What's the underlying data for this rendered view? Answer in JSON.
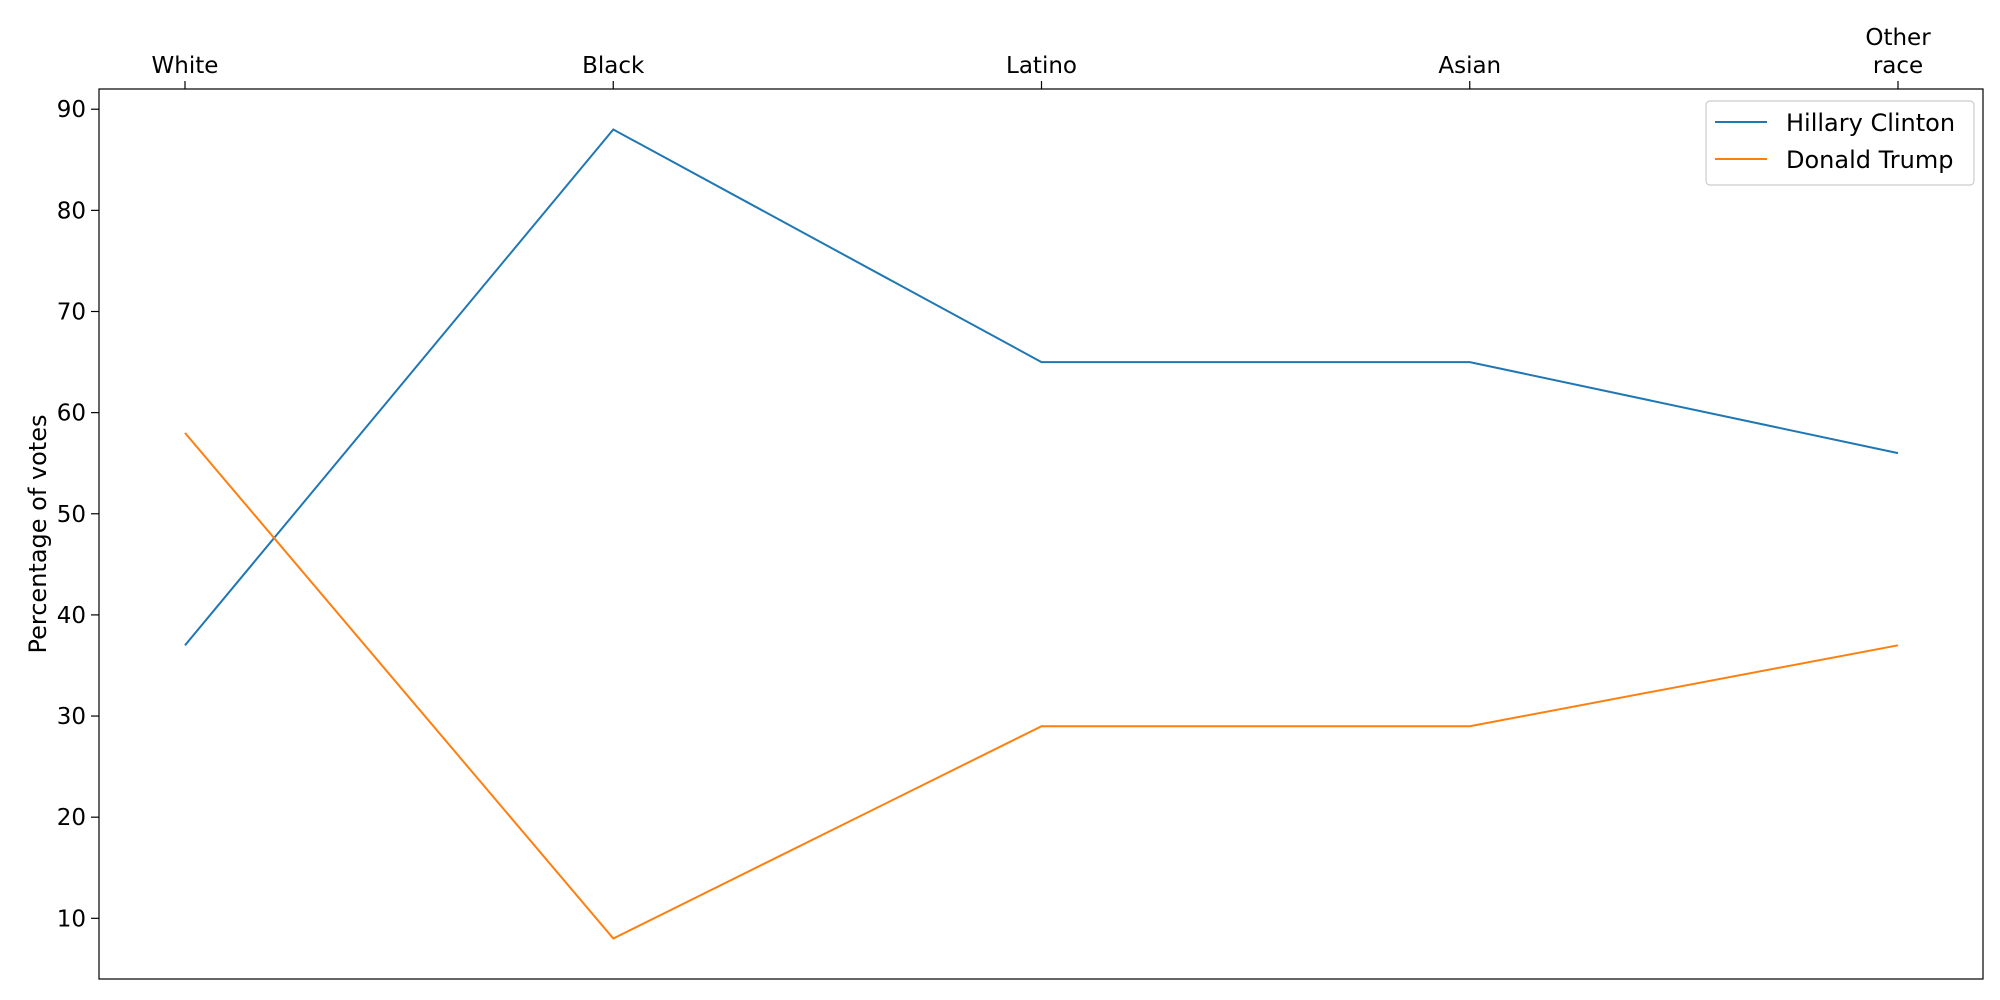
{
  "chart_data": {
    "type": "line",
    "categories": [
      "White",
      "Black",
      "Latino",
      "Asian",
      "Other\nrace"
    ],
    "series": [
      {
        "name": "Hillary Clinton",
        "values": [
          37,
          88,
          65,
          65,
          56
        ],
        "color": "#1f77b4"
      },
      {
        "name": "Donald Trump",
        "values": [
          58,
          8,
          29,
          29,
          37
        ],
        "color": "#ff7f0e"
      }
    ],
    "title": "",
    "xlabel": "",
    "ylabel": "Percentage of votes",
    "ylim": [
      4.0,
      92.0
    ],
    "yticks": [
      10,
      20,
      30,
      40,
      50,
      60,
      70,
      80,
      90
    ],
    "x_tick_position": "top",
    "grid": false,
    "legend": "top-right"
  }
}
